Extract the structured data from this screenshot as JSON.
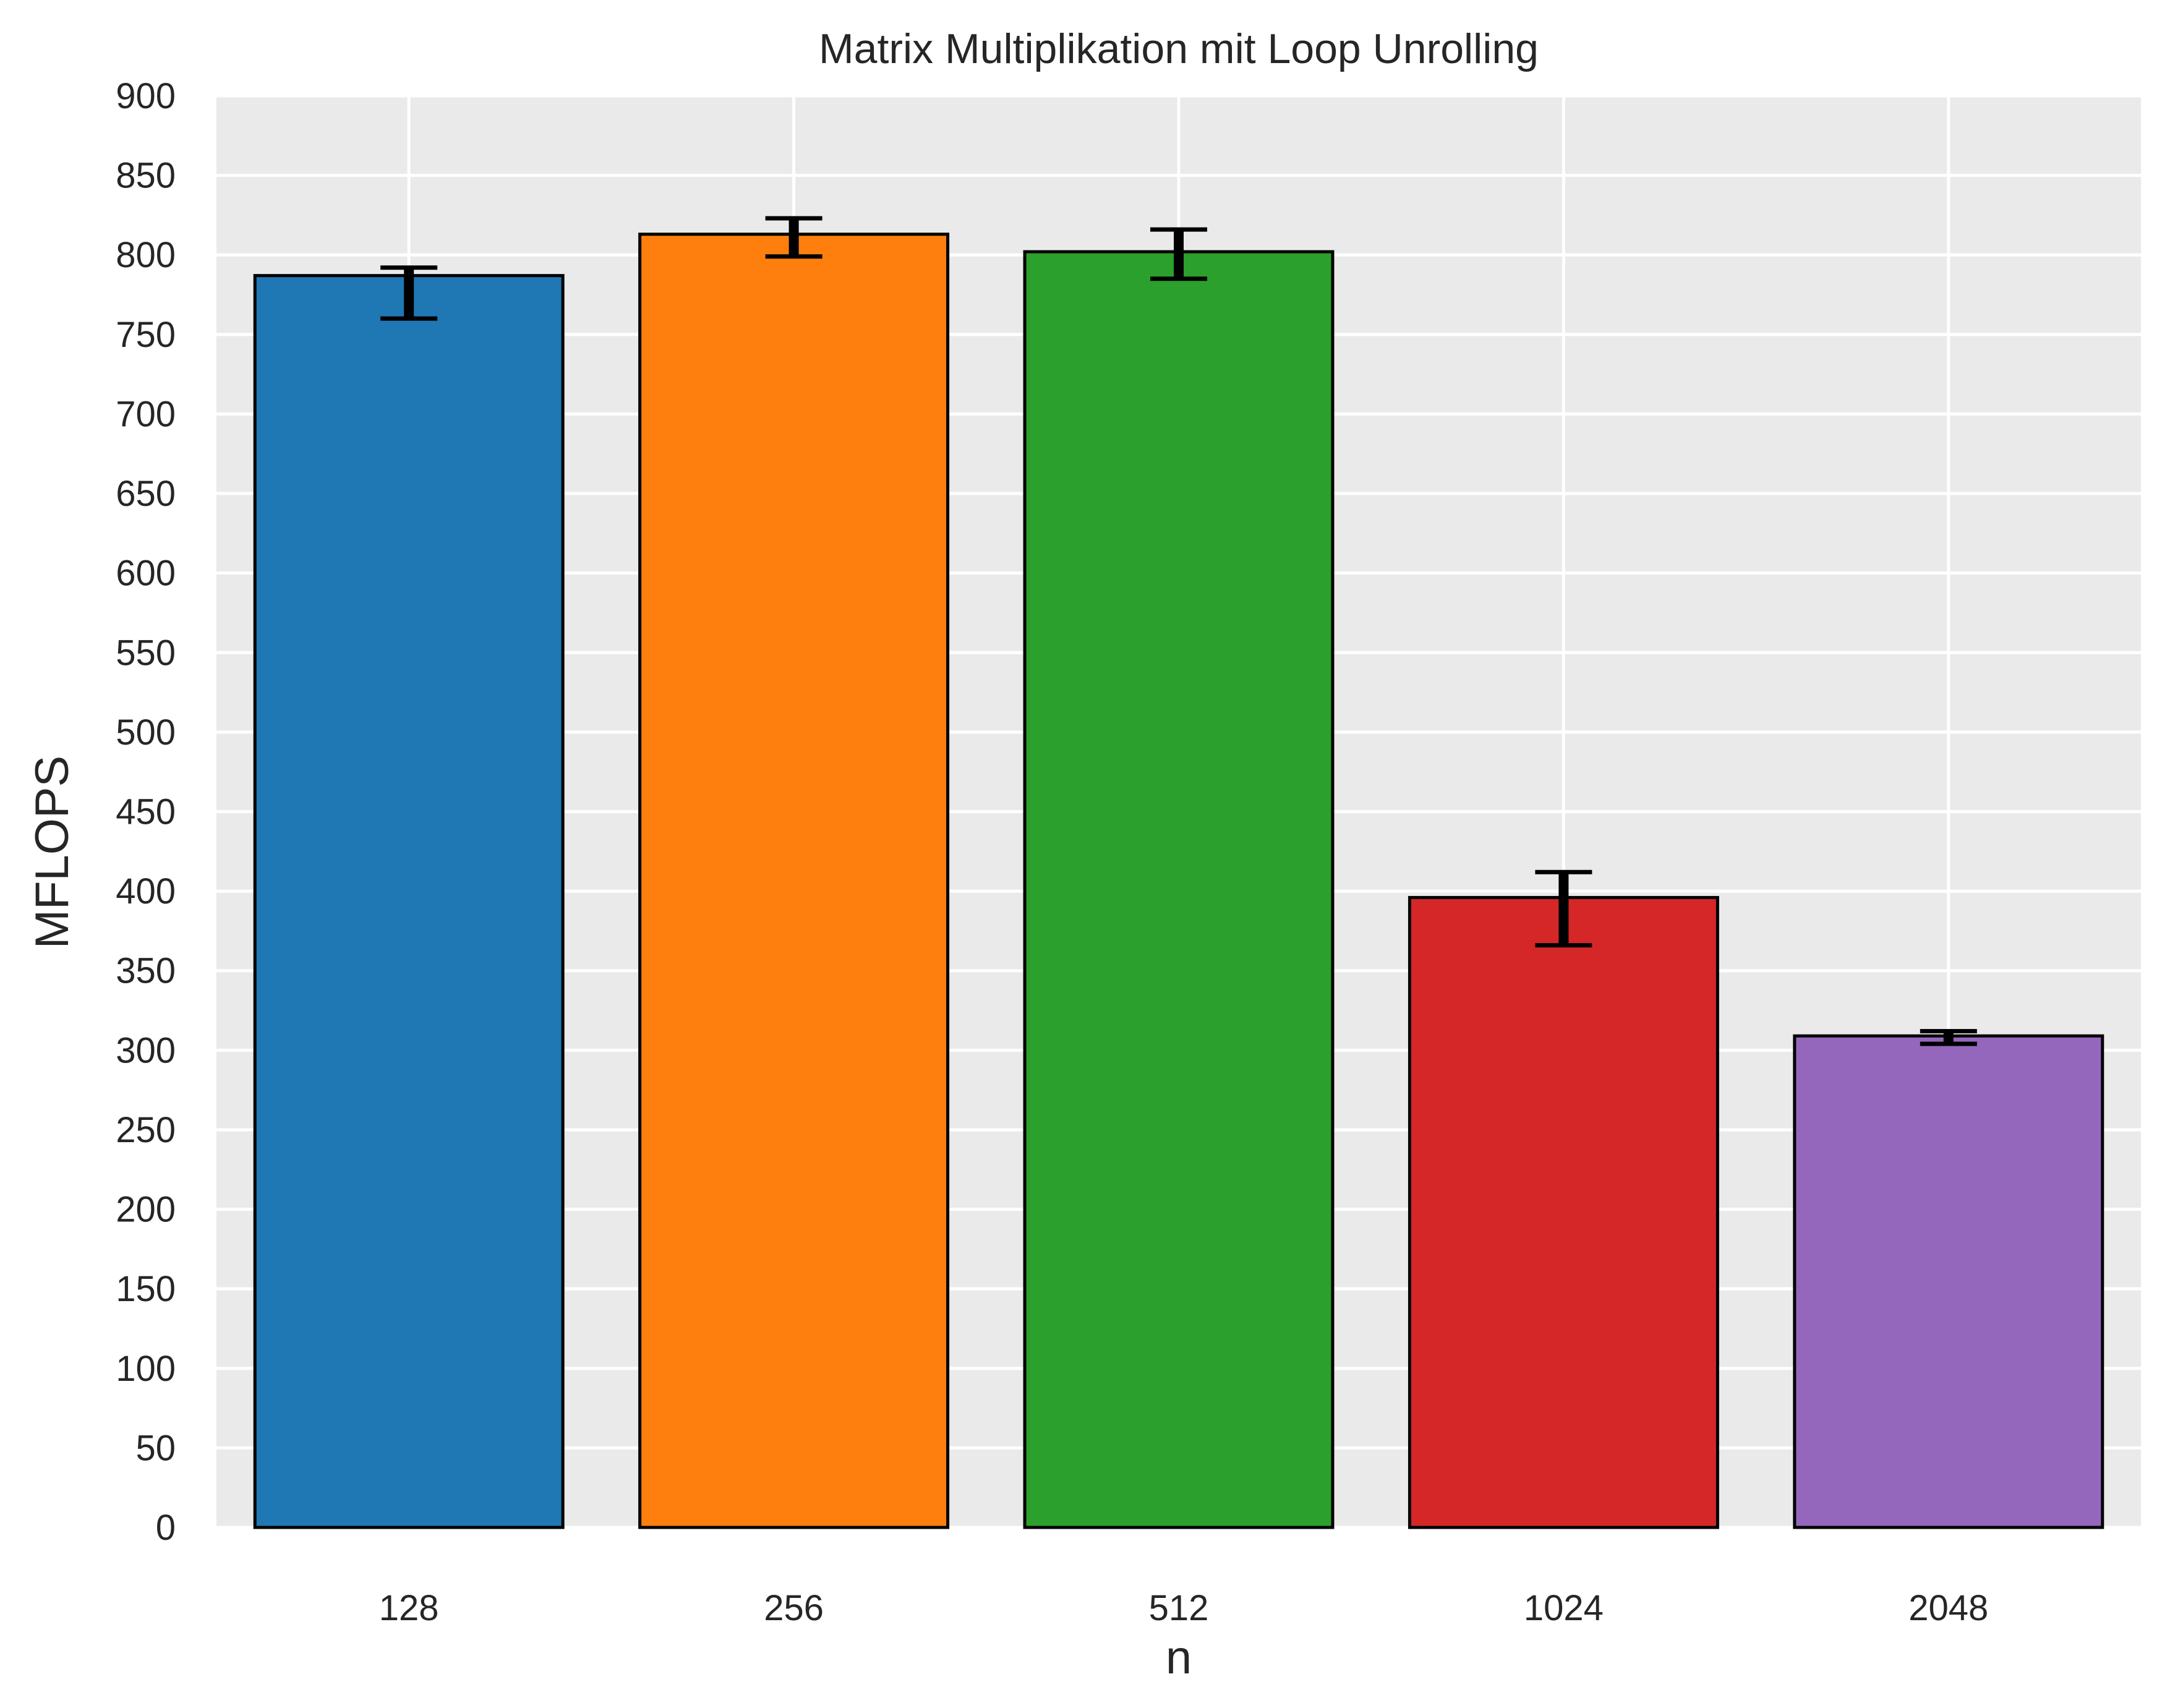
{
  "chart_data": {
    "type": "bar",
    "title": "Matrix Multiplikation mit Loop Unrolling",
    "xlabel": "n",
    "ylabel": "MFLOPS",
    "categories": [
      "128",
      "256",
      "512",
      "1024",
      "2048"
    ],
    "values": [
      787,
      813,
      802,
      396,
      309
    ],
    "errors": [
      [
        760,
        792
      ],
      [
        799,
        823
      ],
      [
        785,
        816
      ],
      [
        366,
        412
      ],
      [
        304,
        312
      ]
    ],
    "colors": [
      "#1f77b4",
      "#ff7f0e",
      "#2ca02c",
      "#d62728",
      "#9467bd"
    ],
    "ylim": [
      0,
      900
    ],
    "yticks": [
      0,
      50,
      100,
      150,
      200,
      250,
      300,
      350,
      400,
      450,
      500,
      550,
      600,
      650,
      700,
      750,
      800,
      850,
      900
    ],
    "grid": true,
    "legend": "none",
    "background": "#eaeaea"
  }
}
